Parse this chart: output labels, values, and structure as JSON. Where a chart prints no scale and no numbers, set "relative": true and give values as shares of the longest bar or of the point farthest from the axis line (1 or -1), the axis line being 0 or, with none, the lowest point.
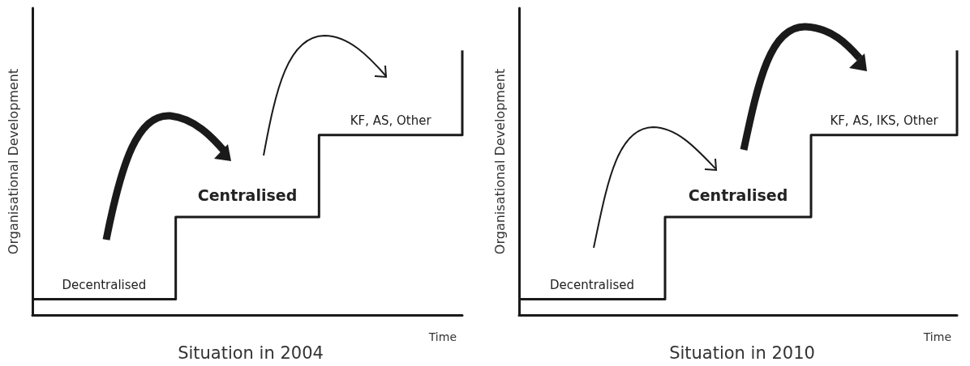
{
  "chart_data": [
    {
      "type": "step",
      "title": "Situation in 2004",
      "xlabel": "Time",
      "ylabel": "Organisational Development",
      "relative": true,
      "categories": [
        null,
        null,
        null,
        null
      ],
      "series": [
        {
          "color": "#1a1a1a",
          "values": [
            0.06,
            0.37,
            0.68,
            1.0
          ]
        }
      ],
      "annotations": [
        {
          "text": "Decentralised",
          "y": 0.06
        },
        {
          "text": "Centralised",
          "y": 0.37
        },
        {
          "text": "KF, AS, Other",
          "y": 0.68
        }
      ],
      "marker": "none",
      "line_style": "solid",
      "grid": false
    },
    {
      "type": "step",
      "title": "Situation in 2010",
      "xlabel": "Time",
      "ylabel": "Organisational Development",
      "relative": true,
      "categories": [
        null,
        null,
        null,
        null
      ],
      "series": [
        {
          "color": "#1a1a1a",
          "values": [
            0.06,
            0.37,
            0.68,
            1.0
          ]
        }
      ],
      "annotations": [
        {
          "text": "Decentralised",
          "y": 0.06
        },
        {
          "text": "Centralised",
          "y": 0.37
        },
        {
          "text": "KF, AS, IKS, Other",
          "y": 0.68
        }
      ],
      "marker": "none",
      "line_style": "solid",
      "grid": false
    }
  ]
}
